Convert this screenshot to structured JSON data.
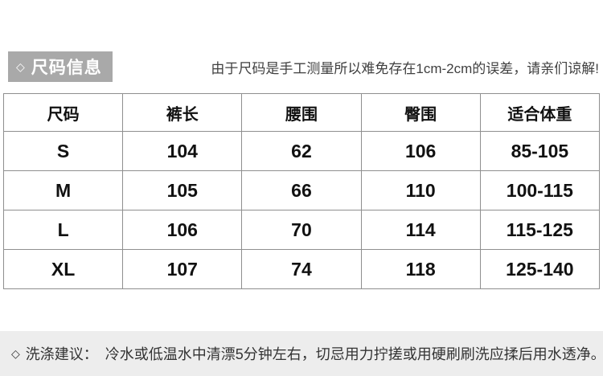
{
  "colors": {
    "badge_bg": "#a9a9a9",
    "badge_text": "#ffffff",
    "note_text": "#404040",
    "table_border": "#8f8f8f",
    "table_text": "#111111",
    "footer_bg": "#ededed",
    "footer_text": "#333333",
    "page_bg": "#ffffff"
  },
  "header": {
    "badge_icon": "◇",
    "badge_label": "尺码信息",
    "note": "由于尺码是手工测量所以难免存在1cm-2cm的误差，请亲们谅解!"
  },
  "size_table": {
    "columns": [
      "尺码",
      "裤长",
      "腰围",
      "臀围",
      "适合体重"
    ],
    "rows": [
      [
        "S",
        "104",
        "62",
        "106",
        "85-105"
      ],
      [
        "M",
        "105",
        "66",
        "110",
        "100-115"
      ],
      [
        "L",
        "106",
        "70",
        "114",
        "115-125"
      ],
      [
        "XL",
        "107",
        "74",
        "118",
        "125-140"
      ]
    ]
  },
  "footer": {
    "icon": "◇",
    "label": "洗涤建议：",
    "text": "冷水或低温水中清漂5分钟左右，切忌用力拧搓或用硬刷刷洗应揉后用水透净。"
  }
}
